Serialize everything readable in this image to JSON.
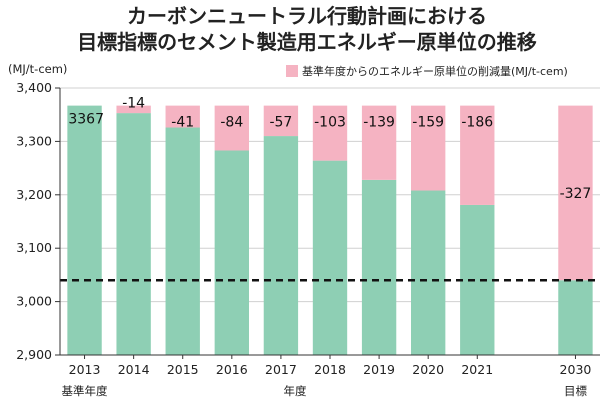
{
  "title": [
    "カーボンニュートラル行動計画における",
    "目標指標のセメント製造用エネルギー原単位の推移"
  ],
  "colors": {
    "base": "#8ecfb4",
    "reduction": "#f5b3c2",
    "target_line": "#111111",
    "axis": "#333333",
    "grid": "#d0d0d0"
  },
  "chart_data": {
    "type": "bar",
    "categories": [
      "2013",
      "2014",
      "2015",
      "2016",
      "2017",
      "2018",
      "2019",
      "2020",
      "2021",
      "",
      "2030"
    ],
    "series": [
      {
        "name": "",
        "values": [
          3367,
          3353,
          3326,
          3283,
          3310,
          3264,
          3228,
          3208,
          3181,
          null,
          3040
        ]
      },
      {
        "name": "基準年度からのエネルギー原単位の削減量(MJ/t-cem)",
        "values": [
          0,
          14,
          41,
          84,
          57,
          103,
          139,
          159,
          186,
          null,
          327
        ]
      }
    ],
    "data_labels": [
      "3367",
      "-14",
      "-41",
      "-84",
      "-57",
      "-103",
      "-139",
      "-159",
      "-186",
      "",
      "-327"
    ],
    "sub_labels": [
      "基準年度",
      "",
      "",
      "",
      "",
      "",
      "",
      "",
      "",
      "",
      "目標"
    ],
    "xlabel": "年度",
    "ylabel": "(MJ/t-cem)",
    "ylim": [
      2900,
      3400
    ],
    "yticks": [
      "2,900",
      "3,000",
      "3,100",
      "3,200",
      "3,300",
      "3,400"
    ],
    "target_line_value": 3040,
    "legend_position": "top-right",
    "grid": true
  }
}
